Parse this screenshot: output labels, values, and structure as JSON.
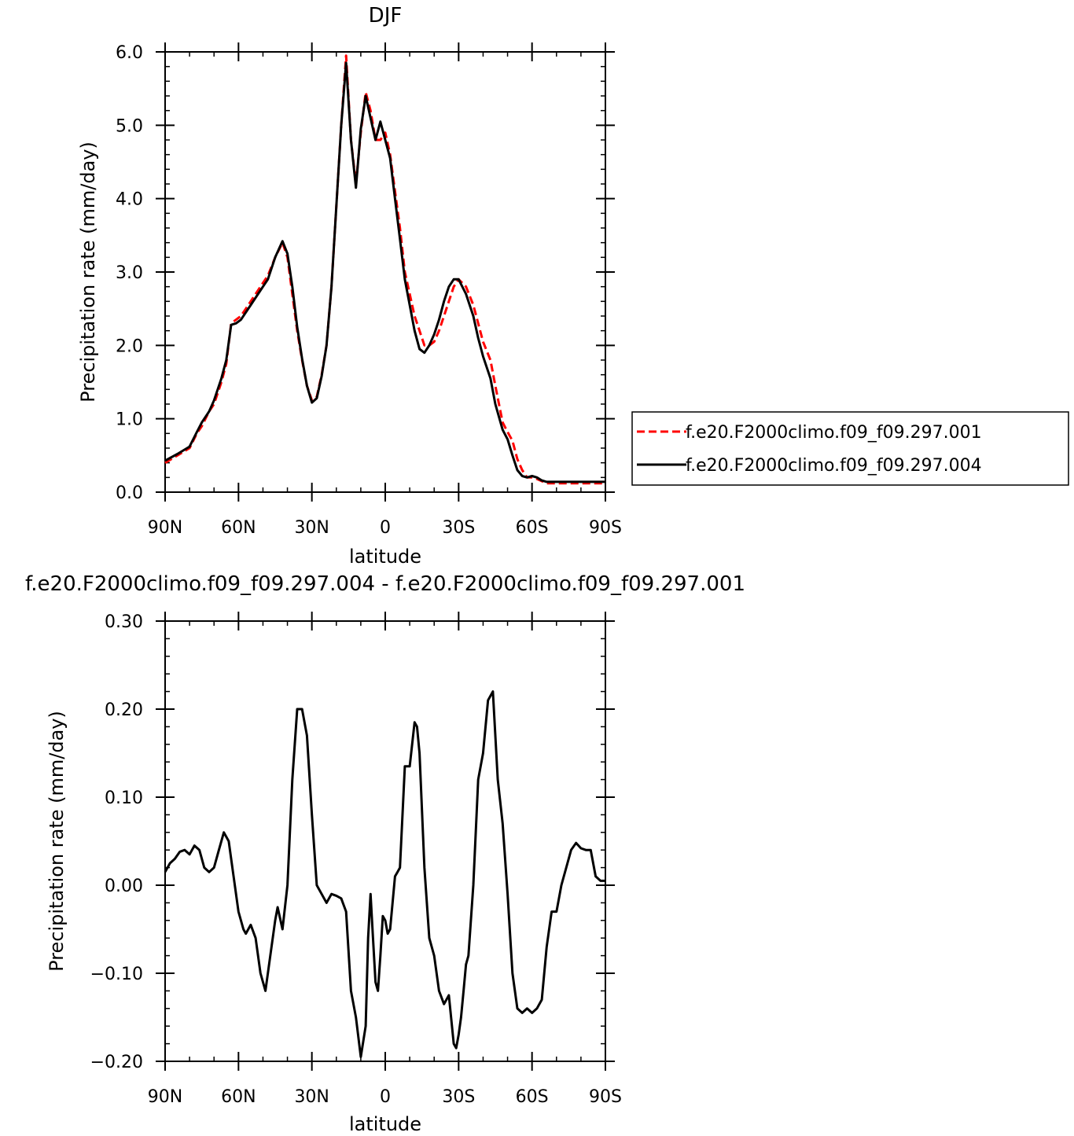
{
  "chart_data": [
    {
      "type": "line",
      "title": "DJF",
      "xlabel": "latitude",
      "ylabel": "Precipitation rate (mm/day)",
      "xlim": [
        90,
        -90
      ],
      "ylim": [
        0.0,
        6.0
      ],
      "x_ticks": [
        {
          "value": 90,
          "label": "90N"
        },
        {
          "value": 60,
          "label": "60N"
        },
        {
          "value": 30,
          "label": "30N"
        },
        {
          "value": 0,
          "label": "0"
        },
        {
          "value": -30,
          "label": "30S"
        },
        {
          "value": -60,
          "label": "60S"
        },
        {
          "value": -90,
          "label": "90S"
        }
      ],
      "y_ticks": [
        {
          "value": 0.0,
          "label": "0.0"
        },
        {
          "value": 1.0,
          "label": "1.0"
        },
        {
          "value": 2.0,
          "label": "2.0"
        },
        {
          "value": 3.0,
          "label": "3.0"
        },
        {
          "value": 4.0,
          "label": "4.0"
        },
        {
          "value": 5.0,
          "label": "5.0"
        },
        {
          "value": 6.0,
          "label": "6.0"
        }
      ],
      "legend_position": "right",
      "series": [
        {
          "name": "f.e20.F2000climo.f09_f09.297.001",
          "color": "#ff0000",
          "dash": "dashed",
          "x": [
            90,
            85,
            80,
            77,
            75,
            72,
            70,
            67,
            65,
            63,
            61,
            59,
            57,
            55,
            52,
            50,
            48,
            45,
            42,
            40,
            38,
            36,
            34,
            32,
            30,
            28,
            26,
            24,
            22,
            20,
            18,
            16,
            14,
            12,
            10,
            8,
            6,
            4,
            2,
            0,
            -2,
            -4,
            -6,
            -8,
            -10,
            -12,
            -14,
            -16,
            -18,
            -20,
            -22,
            -24,
            -26,
            -28,
            -30,
            -33,
            -36,
            -38,
            -40,
            -43,
            -45,
            -48,
            -50,
            -52,
            -54,
            -56,
            -58,
            -60,
            -62,
            -64,
            -66,
            -68,
            -70,
            -72,
            -74,
            -76,
            -78,
            -80,
            -82,
            -84,
            -86,
            -88,
            -90
          ],
          "y": [
            0.4,
            0.5,
            0.6,
            0.8,
            0.9,
            1.1,
            1.2,
            1.5,
            1.75,
            2.3,
            2.35,
            2.4,
            2.5,
            2.6,
            2.75,
            2.85,
            2.95,
            3.2,
            3.4,
            3.2,
            2.7,
            2.2,
            1.8,
            1.45,
            1.25,
            1.3,
            1.6,
            2.0,
            2.8,
            3.9,
            5.0,
            5.95,
            4.8,
            4.2,
            4.9,
            5.45,
            5.2,
            4.8,
            4.8,
            4.9,
            4.6,
            4.1,
            3.6,
            3.0,
            2.7,
            2.4,
            2.2,
            2.0,
            2.0,
            2.05,
            2.2,
            2.4,
            2.6,
            2.8,
            2.9,
            2.8,
            2.55,
            2.3,
            2.05,
            1.8,
            1.45,
            0.95,
            0.82,
            0.7,
            0.45,
            0.3,
            0.2,
            0.2,
            0.18,
            0.15,
            0.12,
            0.12,
            0.12,
            0.12,
            0.12,
            0.12,
            0.12,
            0.12,
            0.12,
            0.12,
            0.12,
            0.12,
            0.12
          ]
        },
        {
          "name": "f.e20.F2000climo.f09_f09.297.004",
          "color": "#000000",
          "dash": "solid",
          "x": [
            90,
            85,
            80,
            77,
            75,
            72,
            70,
            67,
            65,
            63,
            61,
            59,
            57,
            55,
            52,
            50,
            48,
            45,
            42,
            40,
            38,
            36,
            34,
            32,
            30,
            28,
            26,
            24,
            22,
            20,
            18,
            16,
            14,
            12,
            10,
            8,
            6,
            4,
            2,
            0,
            -2,
            -4,
            -6,
            -8,
            -10,
            -12,
            -14,
            -16,
            -18,
            -20,
            -22,
            -24,
            -26,
            -28,
            -30,
            -33,
            -36,
            -38,
            -40,
            -43,
            -45,
            -48,
            -50,
            -52,
            -54,
            -56,
            -58,
            -60,
            -62,
            -64,
            -66,
            -68,
            -70,
            -72,
            -74,
            -76,
            -78,
            -80,
            -82,
            -84,
            -86,
            -88,
            -90
          ],
          "y": [
            0.43,
            0.52,
            0.62,
            0.82,
            0.95,
            1.1,
            1.25,
            1.55,
            1.8,
            2.28,
            2.3,
            2.35,
            2.45,
            2.55,
            2.7,
            2.8,
            2.9,
            3.2,
            3.42,
            3.25,
            2.8,
            2.25,
            1.82,
            1.45,
            1.22,
            1.28,
            1.58,
            2.0,
            2.8,
            3.9,
            5.0,
            5.85,
            4.8,
            4.15,
            4.95,
            5.4,
            5.1,
            4.8,
            5.05,
            4.8,
            4.55,
            4.0,
            3.45,
            2.9,
            2.55,
            2.2,
            1.95,
            1.9,
            2.0,
            2.15,
            2.35,
            2.6,
            2.8,
            2.9,
            2.9,
            2.7,
            2.4,
            2.1,
            1.85,
            1.55,
            1.2,
            0.85,
            0.72,
            0.5,
            0.3,
            0.22,
            0.2,
            0.22,
            0.2,
            0.16,
            0.14,
            0.14,
            0.14,
            0.14,
            0.14,
            0.14,
            0.14,
            0.14,
            0.14,
            0.14,
            0.14,
            0.14,
            0.14
          ]
        }
      ]
    },
    {
      "type": "line",
      "title": "f.e20.F2000climo.f09_f09.297.004 - f.e20.F2000climo.f09_f09.297.001",
      "xlabel": "latitude",
      "ylabel": "Precipitation rate (mm/day)",
      "xlim": [
        90,
        -90
      ],
      "ylim": [
        -0.2,
        0.3
      ],
      "x_ticks": [
        {
          "value": 90,
          "label": "90N"
        },
        {
          "value": 60,
          "label": "60N"
        },
        {
          "value": 30,
          "label": "30N"
        },
        {
          "value": 0,
          "label": "0"
        },
        {
          "value": -30,
          "label": "30S"
        },
        {
          "value": -60,
          "label": "60S"
        },
        {
          "value": -90,
          "label": "90S"
        }
      ],
      "y_ticks": [
        {
          "value": -0.2,
          "label": "−0.20"
        },
        {
          "value": -0.1,
          "label": "−0.10"
        },
        {
          "value": 0.0,
          "label": "0.00"
        },
        {
          "value": 0.1,
          "label": "0.10"
        },
        {
          "value": 0.2,
          "label": "0.20"
        },
        {
          "value": 0.3,
          "label": "0.30"
        }
      ],
      "series": [
        {
          "color": "#000000",
          "dash": "solid",
          "x": [
            90,
            88,
            86,
            84,
            82,
            80,
            78,
            76,
            74,
            72,
            70,
            68,
            66,
            64,
            62,
            60,
            58,
            57,
            55,
            53,
            51,
            49,
            47,
            45,
            44,
            42,
            40,
            38,
            36,
            34,
            32,
            30,
            28,
            26,
            24,
            22,
            20,
            18,
            16,
            14,
            12,
            10,
            8,
            7,
            6,
            5,
            4,
            3,
            2,
            1,
            0,
            -1,
            -2,
            -3,
            -4,
            -5,
            -6,
            -8,
            -10,
            -12,
            -13,
            -14,
            -16,
            -18,
            -20,
            -22,
            -24,
            -26,
            -28,
            -29,
            -30,
            -31,
            -32,
            -33,
            -34,
            -36,
            -38,
            -40,
            -42,
            -44,
            -46,
            -48,
            -50,
            -52,
            -54,
            -56,
            -58,
            -60,
            -62,
            -64,
            -66,
            -68,
            -70,
            -72,
            -74,
            -76,
            -78,
            -80,
            -82,
            -84,
            -86,
            -88,
            -90
          ],
          "y": [
            0.015,
            0.025,
            0.03,
            0.038,
            0.04,
            0.035,
            0.045,
            0.04,
            0.02,
            0.015,
            0.02,
            0.04,
            0.06,
            0.05,
            0.01,
            -0.03,
            -0.05,
            -0.055,
            -0.045,
            -0.06,
            -0.1,
            -0.12,
            -0.08,
            -0.04,
            -0.025,
            -0.05,
            0.0,
            0.12,
            0.2,
            0.2,
            0.17,
            0.08,
            0.0,
            -0.01,
            -0.02,
            -0.01,
            -0.012,
            -0.015,
            -0.03,
            -0.12,
            -0.15,
            -0.195,
            -0.16,
            -0.06,
            -0.01,
            -0.06,
            -0.11,
            -0.12,
            -0.08,
            -0.035,
            -0.04,
            -0.055,
            -0.05,
            -0.02,
            0.01,
            0.015,
            0.02,
            0.135,
            0.135,
            0.185,
            0.18,
            0.15,
            0.02,
            -0.06,
            -0.08,
            -0.12,
            -0.135,
            -0.125,
            -0.18,
            -0.185,
            -0.17,
            -0.15,
            -0.12,
            -0.09,
            -0.08,
            0.0,
            0.12,
            0.15,
            0.21,
            0.22,
            0.12,
            0.07,
            -0.01,
            -0.1,
            -0.14,
            -0.145,
            -0.14,
            -0.145,
            -0.14,
            -0.13,
            -0.07,
            -0.03,
            -0.03,
            0.0,
            0.02,
            0.04,
            0.048,
            0.042,
            0.04,
            0.04,
            0.01,
            0.005,
            0.005
          ]
        }
      ]
    }
  ]
}
